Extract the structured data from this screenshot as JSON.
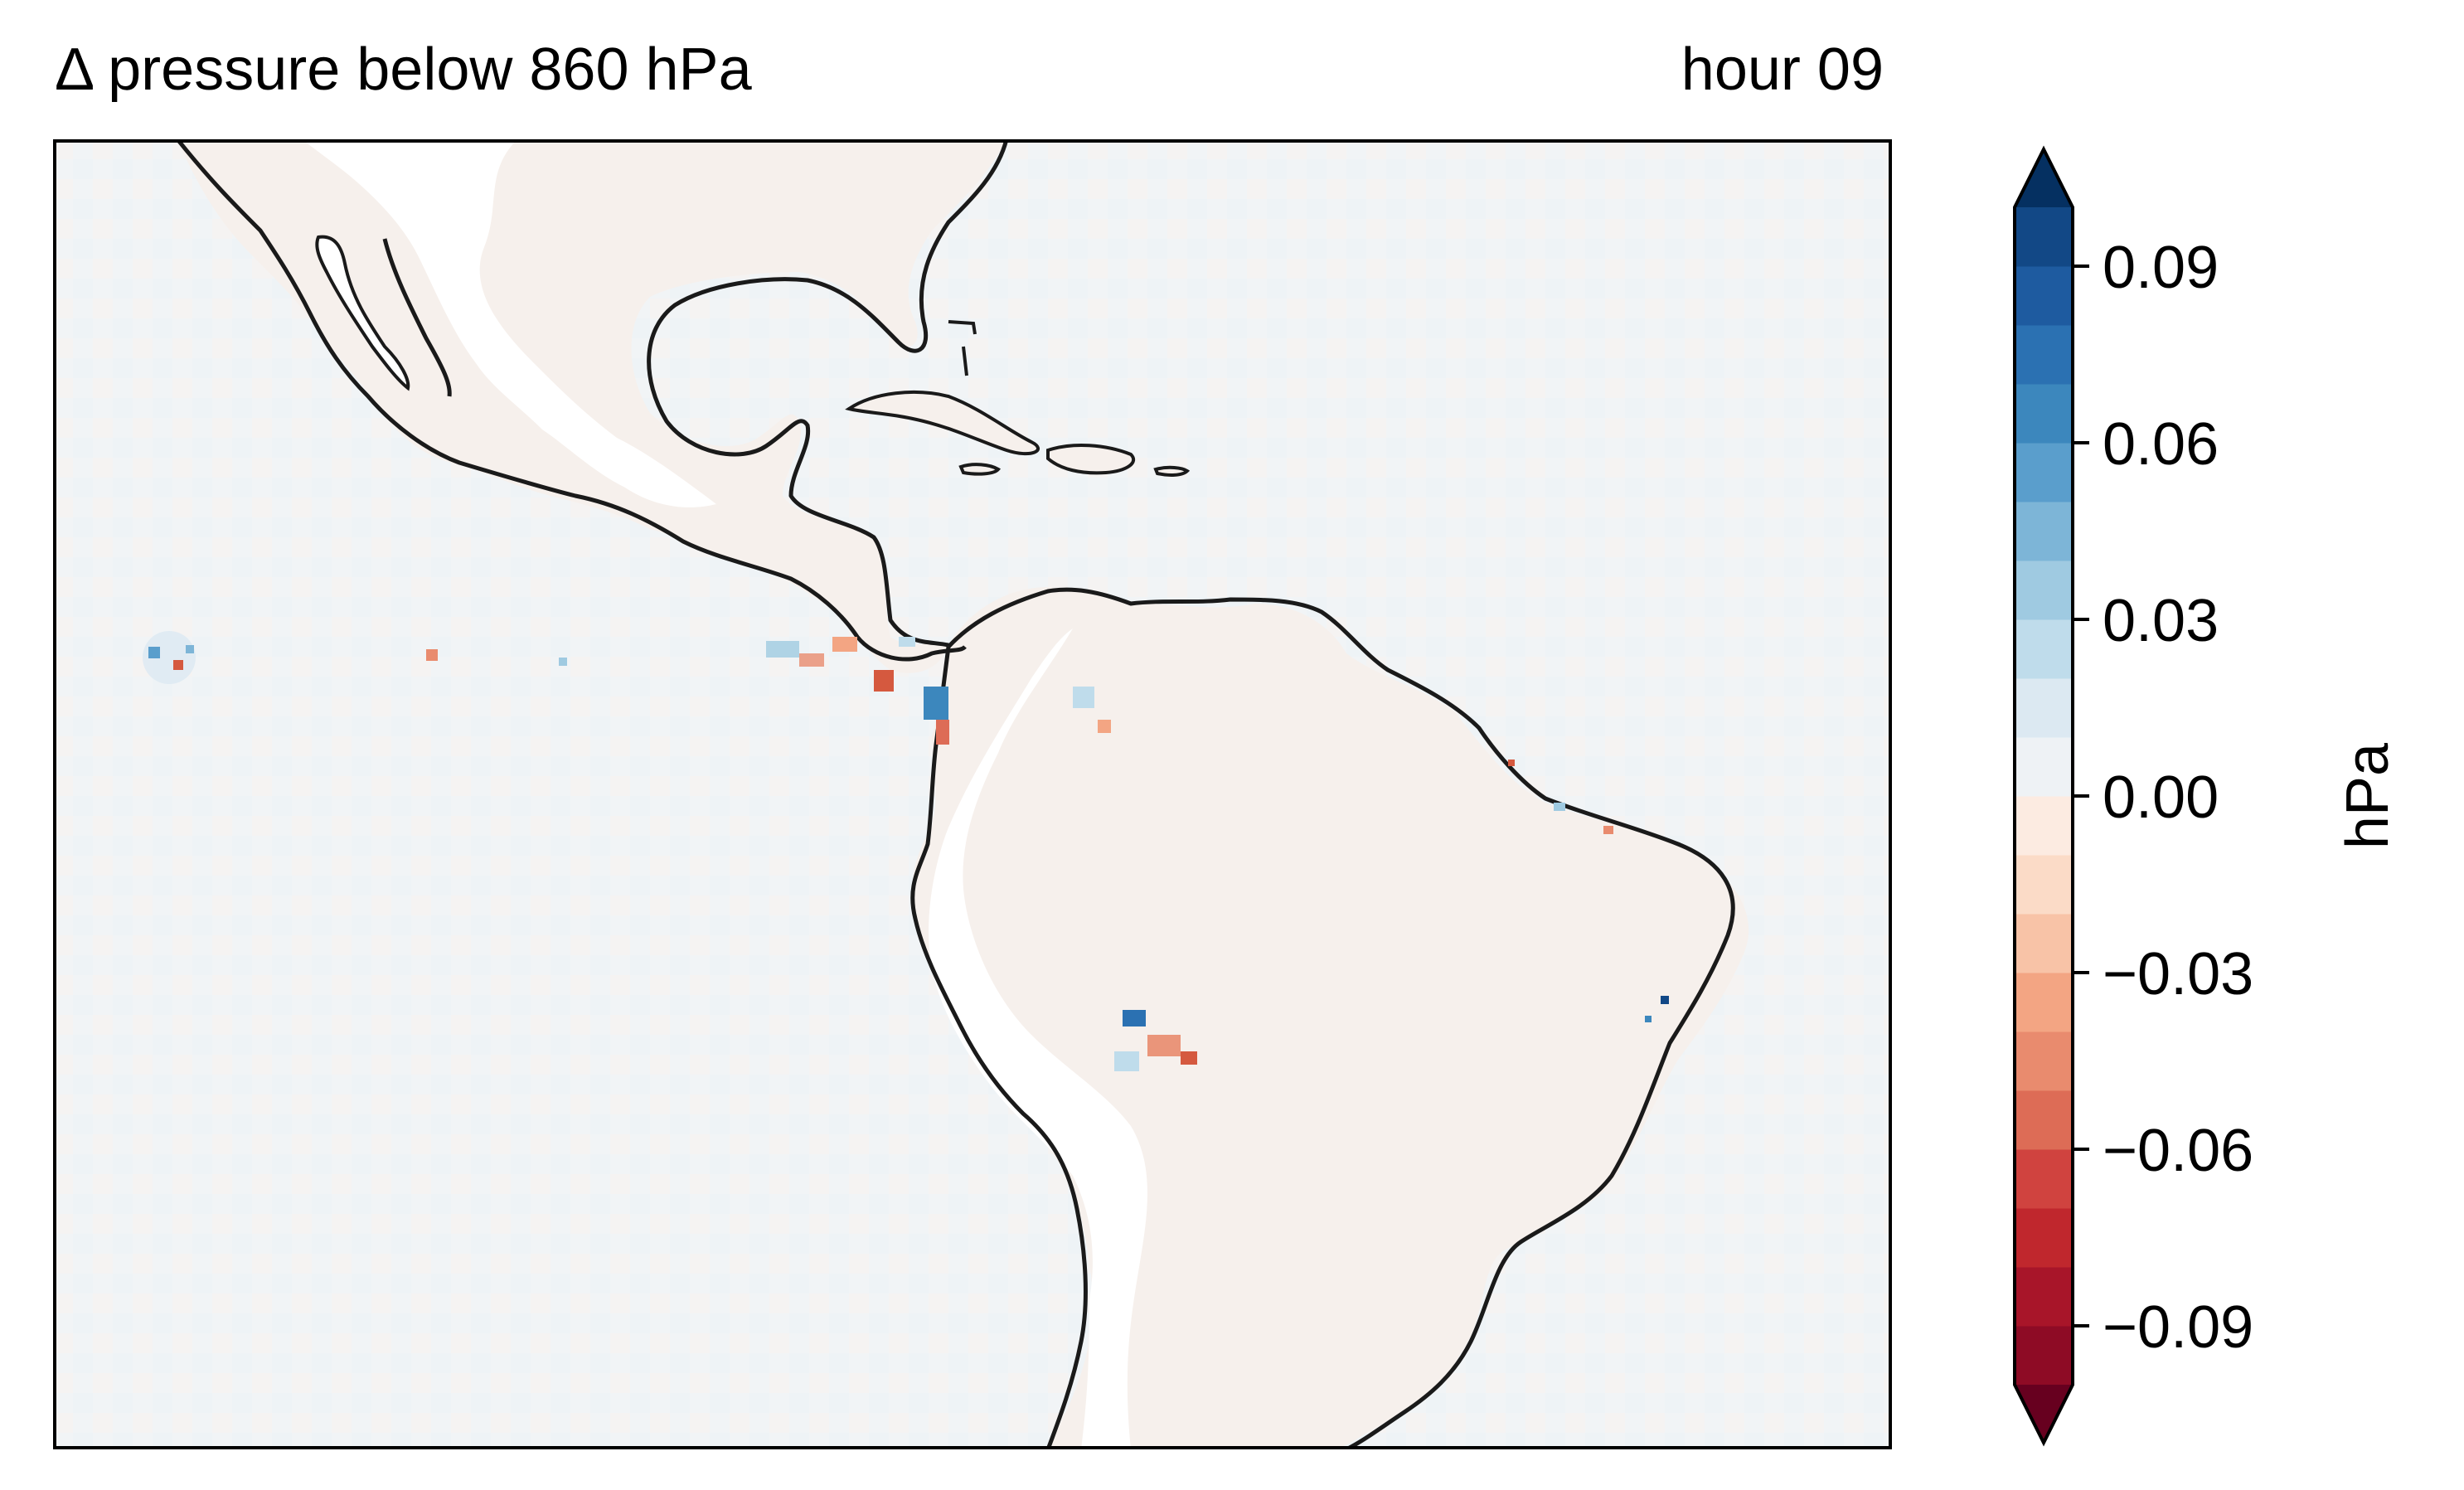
{
  "title": {
    "left": "Δ pressure below 860 hPa",
    "right": "hour 09"
  },
  "colorbar": {
    "label": "hPa",
    "ticks": [
      {
        "value": 0.09,
        "label": "0.09"
      },
      {
        "value": 0.06,
        "label": "0.06"
      },
      {
        "value": 0.03,
        "label": "0.03"
      },
      {
        "value": 0.0,
        "label": "0.00"
      },
      {
        "value": -0.03,
        "label": "−0.03"
      },
      {
        "value": -0.06,
        "label": "−0.06"
      },
      {
        "value": -0.09,
        "label": "−0.09"
      }
    ],
    "range": [
      -0.1,
      0.1
    ],
    "extend": "both",
    "cmap": "RdBu",
    "colors": [
      "#67001f",
      "#8e0b25",
      "#a81529",
      "#c0272d",
      "#d0433f",
      "#dd6c56",
      "#e98b6e",
      "#f3a583",
      "#f8c3a7",
      "#fbdbc7",
      "#fcebe1",
      "#eef2f5",
      "#dce9f2",
      "#bfdceb",
      "#9fcae1",
      "#7db5d7",
      "#5a9ecc",
      "#3c87bd",
      "#2b71b2",
      "#1e5ba0",
      "#124886",
      "#053061"
    ]
  },
  "map": {
    "region": "Central and South America",
    "land_color": "#ffffff",
    "ocean_color": "#f0f4f6",
    "coast_color": "#1a1a1a",
    "anomaly_blue": "#4f8fc4",
    "anomaly_red": "#d5593f"
  }
}
